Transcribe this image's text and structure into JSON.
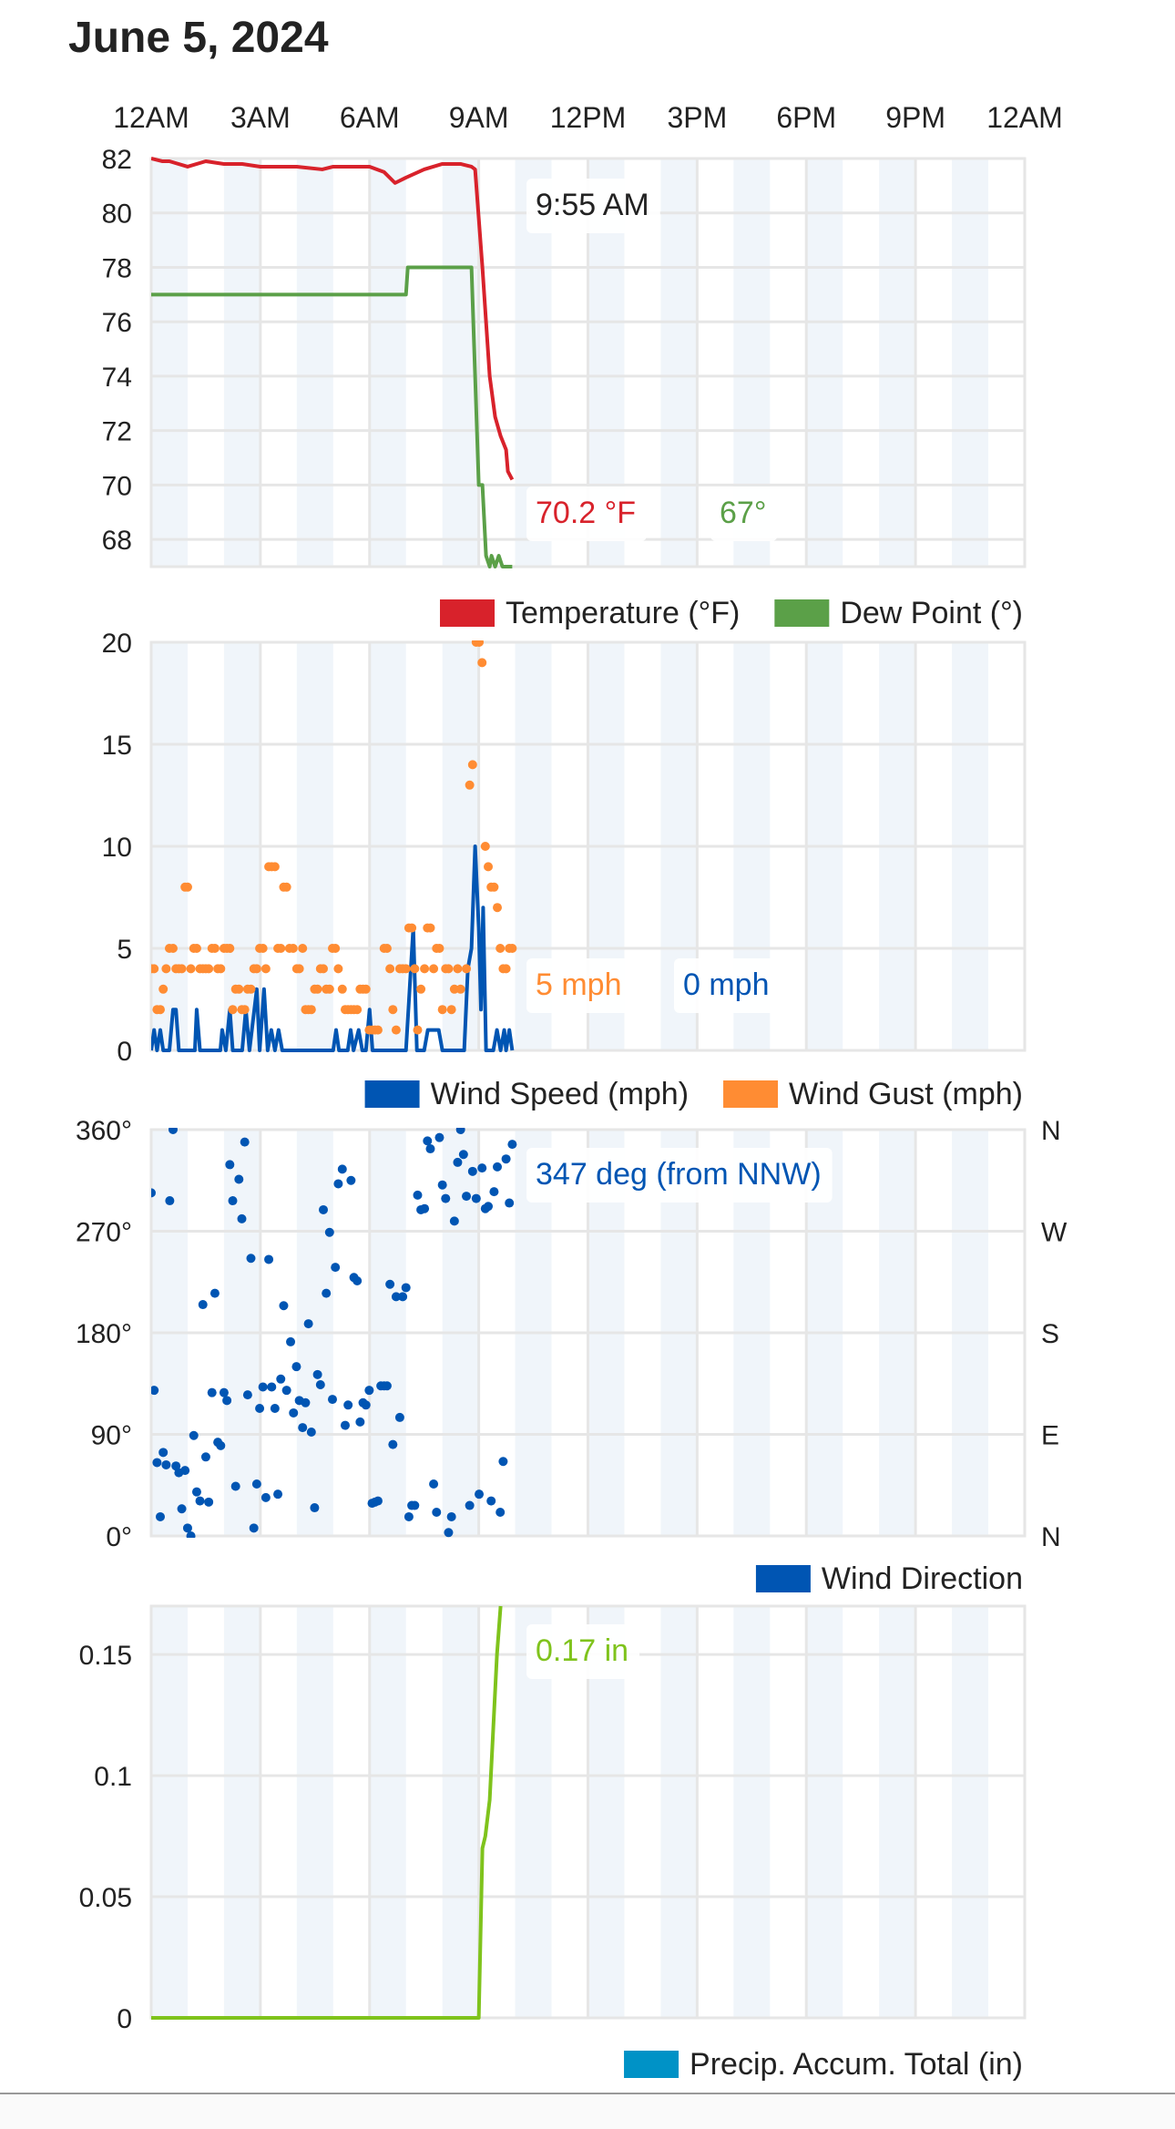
{
  "title": "June 5, 2024",
  "time_axis": {
    "labels": [
      "12AM",
      "3AM",
      "6AM",
      "9AM",
      "12PM",
      "3PM",
      "6PM",
      "9PM",
      "12AM"
    ],
    "hours": [
      0,
      3,
      6,
      9,
      12,
      15,
      18,
      21,
      24
    ]
  },
  "crosshair": {
    "time_label": "9:55 AM",
    "hour": 9.92
  },
  "colors": {
    "temperature": "#d8222b",
    "dew_point": "#5ba048",
    "wind_speed": "#0055b3",
    "wind_gust": "#ff8c33",
    "wind_direction": "#0055b3",
    "precip": "#7fc31c",
    "precip_legend": "#0092c6",
    "grid": "#e6e6e6",
    "band": "#f0f5fa"
  },
  "chart_data": [
    {
      "type": "line",
      "ylim": [
        67,
        82
      ],
      "yticks": [
        "82",
        "80",
        "78",
        "76",
        "74",
        "72",
        "70",
        "68"
      ],
      "ytick_values": [
        82,
        80,
        78,
        76,
        74,
        72,
        70,
        68
      ],
      "tooltips": [
        "70.2 °F",
        "67°"
      ],
      "series": [
        {
          "name": "Temperature (°F)",
          "color": "#d8222b",
          "x": [
            0,
            0.3,
            0.5,
            1,
            1.5,
            2,
            2.5,
            3,
            4,
            4.7,
            5,
            6,
            6.4,
            6.7,
            7,
            7.5,
            8,
            8.5,
            8.8,
            8.9,
            9.1,
            9.3,
            9.45,
            9.6,
            9.75,
            9.8,
            9.92
          ],
          "y": [
            82,
            81.9,
            81.9,
            81.7,
            81.9,
            81.8,
            81.8,
            81.7,
            81.7,
            81.6,
            81.7,
            81.7,
            81.5,
            81.1,
            81.3,
            81.6,
            81.8,
            81.8,
            81.7,
            81.6,
            78,
            74,
            72.5,
            71.8,
            71.3,
            70.5,
            70.2
          ]
        },
        {
          "name": "Dew Point (°)",
          "color": "#5ba048",
          "x": [
            0,
            7,
            7.05,
            8.8,
            8.9,
            9.0,
            9.1,
            9.2,
            9.3,
            9.35,
            9.45,
            9.55,
            9.65,
            9.92
          ],
          "y": [
            77,
            77,
            78,
            78,
            74,
            70,
            70,
            67.4,
            67,
            67.4,
            67,
            67.4,
            67,
            67
          ]
        }
      ]
    },
    {
      "type": "line+scatter",
      "ylim": [
        0,
        20
      ],
      "yticks": [
        "20",
        "15",
        "10",
        "5",
        "0"
      ],
      "ytick_values": [
        20,
        15,
        10,
        5,
        0
      ],
      "tooltips": [
        "5 mph",
        "0 mph"
      ],
      "series": [
        {
          "name": "Wind Speed (mph)",
          "color": "#0055b3",
          "x": [
            0,
            0.08,
            0.16,
            0.25,
            0.33,
            0.5,
            0.6,
            0.68,
            0.76,
            1.2,
            1.25,
            1.34,
            1.9,
            1.95,
            2.05,
            2.16,
            2.24,
            2.5,
            2.6,
            2.7,
            2.9,
            2.98,
            3.1,
            3.2,
            3.3,
            3.4,
            3.5,
            3.6,
            5.0,
            5.08,
            5.16,
            5.4,
            5.48,
            5.56,
            5.7,
            5.8,
            5.9,
            6.0,
            6.08,
            7.0,
            7.1,
            7.2,
            7.3,
            7.5,
            7.6,
            7.7,
            7.8,
            7.9,
            8.0,
            8.6,
            8.7,
            8.8,
            8.9,
            9.0,
            9.06,
            9.12,
            9.2,
            9.4,
            9.5,
            9.6,
            9.7,
            9.75,
            9.84,
            9.92
          ],
          "y": [
            0,
            1,
            0,
            1,
            0,
            0,
            2,
            2,
            0,
            0,
            2,
            0,
            0,
            1,
            0,
            2,
            0,
            0,
            2,
            0,
            3,
            0,
            3,
            0,
            1,
            0,
            1,
            0,
            0,
            1,
            0,
            0,
            1,
            0,
            1,
            0,
            0,
            2,
            0,
            0,
            3,
            6,
            0,
            0,
            1,
            1,
            1,
            1,
            0,
            0,
            4,
            5,
            10,
            6,
            2,
            7,
            0,
            0,
            1,
            0,
            1,
            0,
            1,
            0
          ]
        },
        {
          "name": "Wind Gust (mph)",
          "color": "#ff8c33",
          "x": [
            0,
            0.08,
            0.16,
            0.25,
            0.33,
            0.41,
            0.5,
            0.6,
            0.68,
            0.76,
            0.84,
            0.93,
            1.0,
            1.09,
            1.17,
            1.25,
            1.34,
            1.42,
            1.5,
            1.58,
            1.67,
            1.75,
            1.83,
            1.91,
            2.0,
            2.08,
            2.16,
            2.24,
            2.32,
            2.41,
            2.49,
            2.57,
            2.65,
            2.74,
            2.82,
            2.9,
            2.98,
            3.07,
            3.15,
            3.23,
            3.31,
            3.4,
            3.48,
            3.56,
            3.64,
            3.72,
            3.8,
            3.9,
            4.0,
            4.07,
            4.16,
            4.24,
            4.32,
            4.4,
            4.49,
            4.57,
            4.65,
            4.73,
            4.81,
            4.9,
            4.98,
            5.06,
            5.14,
            5.25,
            5.33,
            5.41,
            5.49,
            5.57,
            5.66,
            5.74,
            5.82,
            5.9,
            5.99,
            6.07,
            6.15,
            6.23,
            6.4,
            6.48,
            6.56,
            6.64,
            6.73,
            6.83,
            6.91,
            7.0,
            7.08,
            7.16,
            7.24,
            7.32,
            7.41,
            7.51,
            7.59,
            7.67,
            7.76,
            7.84,
            7.92,
            8.0,
            8.09,
            8.17,
            8.25,
            8.33,
            8.42,
            8.5,
            8.66,
            8.75,
            8.83,
            8.93,
            9.01,
            9.09,
            9.18,
            9.26,
            9.34,
            9.42,
            9.51,
            9.59,
            9.67,
            9.75,
            9.84,
            9.92
          ],
          "y": [
            4,
            4,
            2,
            2,
            3,
            4,
            5,
            5,
            4,
            4,
            4,
            8,
            8,
            4,
            5,
            5,
            4,
            4,
            4,
            4,
            5,
            5,
            4,
            4,
            5,
            5,
            5,
            2,
            3,
            3,
            2,
            2,
            3,
            3,
            4,
            4,
            5,
            5,
            4,
            9,
            9,
            9,
            5,
            5,
            8,
            8,
            5,
            5,
            4,
            4,
            5,
            2,
            2,
            2,
            3,
            3,
            4,
            4,
            3,
            3,
            5,
            5,
            4,
            3,
            2,
            2,
            2,
            2,
            2,
            3,
            3,
            3,
            1,
            1,
            1,
            1,
            5,
            5,
            4,
            2,
            1,
            4,
            4,
            4,
            6,
            6,
            4,
            1,
            3,
            4,
            6,
            6,
            4,
            5,
            5,
            2,
            4,
            4,
            2,
            3,
            4,
            3,
            4,
            13,
            14,
            20,
            20,
            19,
            10,
            9,
            8,
            8,
            7,
            5,
            4,
            4,
            5,
            5
          ]
        }
      ]
    },
    {
      "type": "scatter",
      "ylim": [
        0,
        360
      ],
      "yticks": [
        "360°",
        "270°",
        "180°",
        "90°",
        "0°"
      ],
      "ytick_values": [
        360,
        270,
        180,
        90,
        0
      ],
      "right_labels": [
        "N",
        "W",
        "S",
        "E",
        "N"
      ],
      "tooltips": [
        "347 deg (from NNW)"
      ],
      "series": [
        {
          "name": "Wind Direction",
          "color": "#0055b3",
          "x": [
            0,
            0.08,
            0.16,
            0.25,
            0.33,
            0.41,
            0.51,
            0.6,
            0.68,
            0.76,
            0.84,
            0.93,
            1.0,
            1.09,
            1.17,
            1.25,
            1.34,
            1.42,
            1.5,
            1.58,
            1.67,
            1.75,
            1.83,
            1.91,
            2.0,
            2.08,
            2.16,
            2.24,
            2.32,
            2.41,
            2.49,
            2.57,
            2.65,
            2.74,
            2.82,
            2.9,
            2.98,
            3.07,
            3.15,
            3.23,
            3.31,
            3.4,
            3.48,
            3.56,
            3.64,
            3.72,
            3.83,
            3.91,
            3.99,
            4.07,
            4.16,
            4.24,
            4.32,
            4.4,
            4.49,
            4.57,
            4.65,
            4.73,
            4.81,
            4.9,
            4.98,
            5.06,
            5.14,
            5.25,
            5.33,
            5.41,
            5.49,
            5.57,
            5.66,
            5.74,
            5.82,
            5.9,
            5.99,
            6.07,
            6.15,
            6.23,
            6.31,
            6.4,
            6.48,
            6.56,
            6.64,
            6.73,
            6.83,
            6.91,
            7.0,
            7.08,
            7.16,
            7.24,
            7.32,
            7.41,
            7.51,
            7.59,
            7.67,
            7.76,
            7.84,
            7.92,
            8.0,
            8.09,
            8.17,
            8.25,
            8.33,
            8.42,
            8.5,
            8.58,
            8.66,
            8.75,
            8.83,
            8.93,
            9.01,
            9.09,
            9.18,
            9.26,
            9.34,
            9.42,
            9.51,
            9.59,
            9.67,
            9.75,
            9.84,
            9.92
          ],
          "y": [
            304,
            129,
            65,
            17,
            74,
            63,
            297,
            360,
            62,
            56,
            24,
            58,
            7,
            0,
            89,
            39,
            31,
            205,
            70,
            30,
            127,
            215,
            83,
            80,
            127,
            120,
            329,
            297,
            44,
            316,
            281,
            349,
            125,
            246,
            7,
            46,
            113,
            132,
            34,
            245,
            132,
            113,
            37,
            139,
            204,
            129,
            172,
            109,
            150,
            120,
            96,
            118,
            188,
            92,
            25,
            143,
            134,
            289,
            215,
            269,
            121,
            238,
            312,
            325,
            98,
            116,
            315,
            229,
            226,
            101,
            118,
            116,
            129,
            29,
            30,
            31,
            133,
            133,
            133,
            223,
            81,
            212,
            105,
            212,
            220,
            17,
            27,
            27,
            302,
            289,
            290,
            350,
            343,
            46,
            21,
            353,
            311,
            299,
            3,
            17,
            279,
            331,
            360,
            338,
            301,
            27,
            323,
            299,
            37,
            326,
            290,
            292,
            31,
            305,
            327,
            21,
            66,
            334,
            295,
            347
          ]
        }
      ]
    },
    {
      "type": "line",
      "ylim": [
        0,
        0.17
      ],
      "yticks": [
        "0.15",
        "0.1",
        "0.05",
        "0"
      ],
      "ytick_values": [
        0.15,
        0.1,
        0.05,
        0
      ],
      "tooltips": [
        "0.17 in"
      ],
      "series": [
        {
          "name": "Precip. Accum. Total (in)",
          "color": "#7fc31c",
          "legend_color": "#0092c6",
          "x": [
            0,
            9.0,
            9.1,
            9.18,
            9.22,
            9.3,
            9.4,
            9.5,
            9.6
          ],
          "y": [
            0,
            0,
            0.07,
            0.075,
            0.08,
            0.09,
            0.12,
            0.15,
            0.17
          ]
        }
      ]
    }
  ]
}
